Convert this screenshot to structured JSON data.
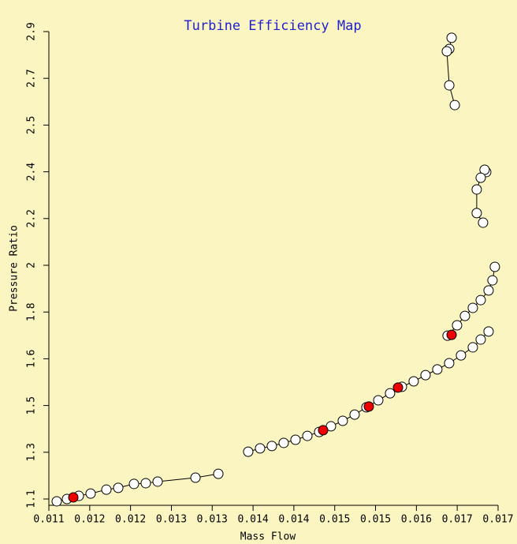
{
  "chart_data": {
    "type": "scatter",
    "title": "Turbine Efficiency Map",
    "x_label": "Mass Flow",
    "y_label": "Pressure Ratio",
    "xlim": [
      0.011,
      0.0171
    ],
    "ylim": [
      1.1,
      2.9
    ],
    "xticks": [
      0.011,
      {
        "value": 0.011555,
        "label": "0.012"
      },
      {
        "value": 0.012109,
        "label": "0.012"
      },
      {
        "value": 0.012664,
        "label": "0.013"
      },
      {
        "value": 0.013218,
        "label": "0.013"
      },
      {
        "value": 0.013773,
        "label": "0.014"
      },
      {
        "value": 0.014327,
        "label": "0.014"
      },
      {
        "value": 0.014882,
        "label": "0.015"
      },
      {
        "value": 0.015436,
        "label": "0.015"
      },
      {
        "value": 0.015991,
        "label": "0.016"
      },
      {
        "value": 0.016545,
        "label": "0.017"
      },
      {
        "value": 0.0171,
        "label": "0.017"
      }
    ],
    "yticks": [
      1.1,
      {
        "value": 1.28,
        "label": "1.3"
      },
      {
        "value": 1.46,
        "label": "1.5"
      },
      {
        "value": 1.64,
        "label": "1.6"
      },
      {
        "value": 1.82,
        "label": "1.8"
      },
      2.0,
      {
        "value": 2.18,
        "label": "2.2"
      },
      {
        "value": 2.36,
        "label": "2.4"
      },
      {
        "value": 2.54,
        "label": "2.5"
      },
      {
        "value": 2.72,
        "label": "2.7"
      },
      2.9
    ],
    "series": [
      {
        "color": "#000000",
        "marker_fill": "#ffffff",
        "line": true,
        "x": [
          0.011107,
          0.011246,
          0.011407,
          0.011567,
          0.011781,
          0.011942,
          0.012156,
          0.012316,
          0.012477,
          0.012991,
          0.013301
        ],
        "values": [
          1.091,
          1.1,
          1.112,
          1.121,
          1.136,
          1.143,
          1.158,
          1.161,
          1.167,
          1.182,
          1.197
        ]
      },
      {
        "color": "#000000",
        "marker_fill": "#ffffff",
        "line": true,
        "x": [
          0.013707,
          0.013868,
          0.014028,
          0.014189,
          0.014349,
          0.01451,
          0.01467,
          0.014831,
          0.014991,
          0.015152,
          0.015312,
          0.015473,
          0.015633,
          0.015794,
          0.015954,
          0.016115,
          0.016275,
          0.016436,
          0.016596,
          0.016757,
          0.016864,
          0.016971
        ],
        "values": [
          1.282,
          1.295,
          1.304,
          1.316,
          1.328,
          1.343,
          1.358,
          1.38,
          1.401,
          1.425,
          1.453,
          1.48,
          1.507,
          1.532,
          1.553,
          1.577,
          1.599,
          1.623,
          1.653,
          1.684,
          1.714,
          1.745
        ]
      },
      {
        "color": "#000000",
        "marker_fill": "#ffffff",
        "line": true,
        "x": [
          0.016414,
          0.016543,
          0.01665,
          0.016757,
          0.016864,
          0.016971,
          0.017024,
          0.017056
        ],
        "values": [
          1.729,
          1.769,
          1.805,
          1.836,
          1.866,
          1.903,
          1.942,
          1.994
        ]
      },
      {
        "color": "#000000",
        "marker_fill": "#ffffff",
        "line": true,
        "x": [
          0.016939,
          0.016917,
          0.016864,
          0.01681,
          0.01681,
          0.016896
        ],
        "values": [
          2.359,
          2.368,
          2.337,
          2.292,
          2.201,
          2.164
        ]
      },
      {
        "color": "#000000",
        "marker_fill": "#ffffff",
        "line": true,
        "x": [
          0.016469,
          0.016437,
          0.016404,
          0.016437,
          0.016512
        ],
        "values": [
          2.876,
          2.833,
          2.824,
          2.693,
          2.617
        ]
      },
      {
        "color": "#000000",
        "marker_fill": "#ee0000",
        "line": false,
        "x": [
          0.011332,
          0.014724,
          0.015345,
          0.015741,
          0.016469
        ],
        "values": [
          1.106,
          1.365,
          1.456,
          1.529,
          1.732
        ]
      }
    ]
  }
}
